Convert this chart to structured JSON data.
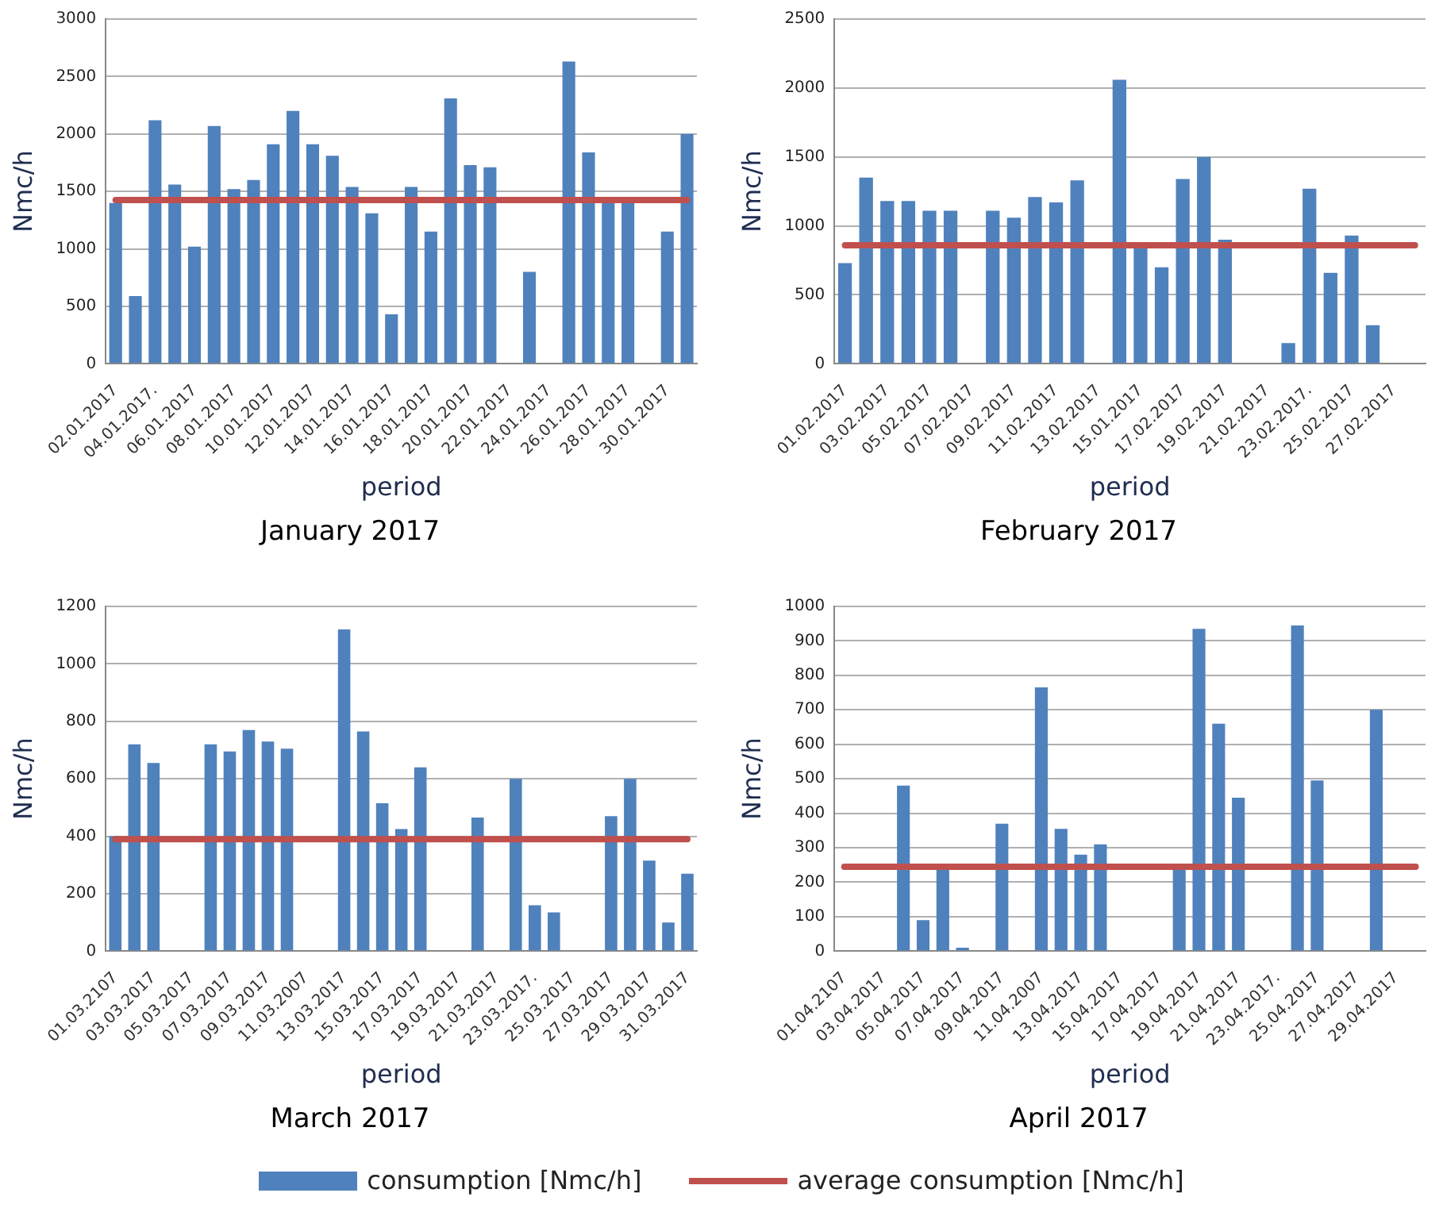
{
  "chart_data": [
    {
      "type": "bar",
      "title": "January 2017",
      "xlabel": "period",
      "ylabel": "Nmc/h",
      "categories": [
        "02.01.2017",
        null,
        "04.01.2017.",
        null,
        "06.01.2017",
        null,
        "08.01.2017",
        null,
        "10.01.2017",
        null,
        "12.01.2017",
        null,
        "14.01.2017",
        null,
        "16.01.2017",
        null,
        "18.01.2017",
        null,
        "20.01.2017",
        null,
        "22.01.2017",
        null,
        "24.01.2017",
        null,
        "26.01.2017",
        null,
        "28.01.2017",
        null,
        "30.01.2017",
        null
      ],
      "values": [
        1400,
        590,
        2120,
        1560,
        1020,
        2070,
        1520,
        1600,
        1910,
        2200,
        1910,
        1810,
        1540,
        1310,
        430,
        1540,
        1150,
        2310,
        1730,
        1710,
        null,
        800,
        null,
        2630,
        1840,
        1420,
        1420,
        null,
        1150,
        2000
      ],
      "color": "#4f81bd",
      "ylim": [
        0,
        3000
      ],
      "yticks": [
        0,
        500,
        1000,
        1500,
        2000,
        2500,
        3000
      ],
      "grid": "y",
      "ref_lines": [
        {
          "axis": "y",
          "value": 1425,
          "color": "#c0504d"
        }
      ]
    },
    {
      "type": "bar",
      "title": "February 2017",
      "xlabel": "period",
      "ylabel": "Nmc/h",
      "categories": [
        "01.02.2017",
        null,
        "03.02.2017",
        null,
        "05.02.2017",
        null,
        "07.02.2017",
        null,
        "09.02.2017",
        null,
        "11.02.2017",
        null,
        "13.02.2017",
        null,
        "15.01.2017",
        null,
        "17.02.2017",
        null,
        "19.02.2017",
        null,
        "21.02.2017",
        null,
        "23.02.2017.",
        null,
        "25.02.2017",
        null,
        "27.02.2017",
        null
      ],
      "values": [
        730,
        1350,
        1180,
        1180,
        1110,
        1110,
        null,
        1110,
        1060,
        1210,
        1170,
        1330,
        null,
        2060,
        860,
        700,
        1340,
        1500,
        900,
        null,
        null,
        150,
        1270,
        660,
        930,
        280,
        null,
        null
      ],
      "color": "#4f81bd",
      "ylim": [
        0,
        2500
      ],
      "yticks": [
        0,
        500,
        1000,
        1500,
        2000,
        2500
      ],
      "grid": "y",
      "ref_lines": [
        {
          "axis": "y",
          "value": 860,
          "color": "#c0504d"
        }
      ]
    },
    {
      "type": "bar",
      "title": "March 2017",
      "xlabel": "period",
      "ylabel": "Nmc/h",
      "categories": [
        "01.03.2107",
        null,
        "03.03.2017",
        null,
        "05.03.2017",
        null,
        "07.03.2017",
        null,
        "09.03.2017",
        null,
        "11.03.2007",
        null,
        "13.03.2017",
        null,
        "15.03.2017",
        null,
        "17.03.2017",
        null,
        "19.03.2017",
        null,
        "21.03.2017",
        null,
        "23.03.2017.",
        null,
        "25.03.2017",
        null,
        "27.03.2017",
        null,
        "29.03.2017",
        null,
        "31.03.2017"
      ],
      "values": [
        400,
        720,
        655,
        null,
        null,
        720,
        695,
        770,
        730,
        705,
        null,
        null,
        1120,
        765,
        515,
        425,
        640,
        null,
        null,
        465,
        null,
        600,
        160,
        135,
        null,
        null,
        470,
        600,
        315,
        100,
        270
      ],
      "color": "#4f81bd",
      "ylim": [
        0,
        1200
      ],
      "yticks": [
        0,
        200,
        400,
        600,
        800,
        1000,
        1200
      ],
      "grid": "y",
      "ref_lines": [
        {
          "axis": "y",
          "value": 390,
          "color": "#c0504d"
        }
      ]
    },
    {
      "type": "bar",
      "title": "April 2017",
      "xlabel": "period",
      "ylabel": "Nmc/h",
      "categories": [
        "01.04.2107",
        null,
        "03.04.2017",
        null,
        "05.04.2017",
        null,
        "07.04.2017",
        null,
        "09.04.2017",
        null,
        "11.04.2007",
        null,
        "13.04.2017",
        null,
        "15.04.2017",
        null,
        "17.04.2017",
        null,
        "19.04.2017",
        null,
        "21.04.2017",
        null,
        "23.04.2017.",
        null,
        "25.04.2017",
        null,
        "27.04.2017",
        null,
        "29.04.2017",
        null
      ],
      "series": [
        {
          "name": "consumption [Nmc/h]",
          "color": "#4f81bd",
          "values": [
            null,
            null,
            null,
            480,
            90,
            240,
            10,
            null,
            370,
            null,
            765,
            355,
            280,
            310,
            null,
            null,
            null,
            240,
            935,
            660,
            445,
            null,
            null,
            945,
            495,
            null,
            null,
            700,
            null,
            null
          ]
        }
      ],
      "ylim": [
        0,
        1000
      ],
      "yticks": [
        0,
        100,
        200,
        300,
        400,
        500,
        600,
        700,
        800,
        900,
        1000
      ],
      "grid": "y",
      "legend": "bottom",
      "ref_lines": [
        {
          "axis": "y",
          "value": 245,
          "color": "#c0504d",
          "label": "average consumption [Nmc/h]"
        }
      ]
    }
  ]
}
